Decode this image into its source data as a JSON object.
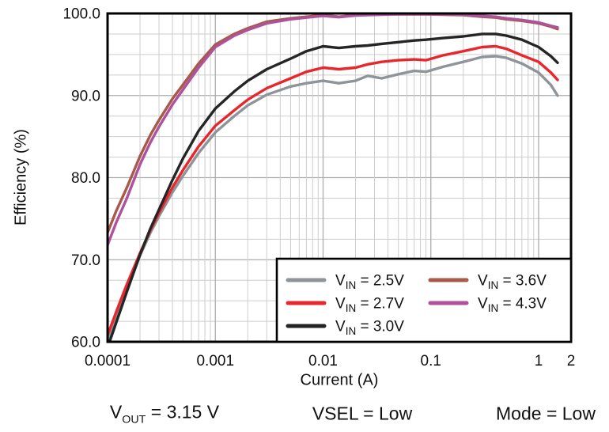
{
  "chart_data": {
    "type": "line",
    "x_scale": "log",
    "xlabel": "Current (A)",
    "ylabel": "Efficiency (%)",
    "xlim": [
      0.0001,
      2
    ],
    "ylim": [
      60,
      100
    ],
    "grid": true,
    "y_minor_step": 2.5,
    "legend_position": "inside-bottom-right",
    "x_tick_labels": [
      {
        "value": 0.0001,
        "label": "0.0001"
      },
      {
        "value": 0.001,
        "label": "0.001"
      },
      {
        "value": 0.01,
        "label": "0.01"
      },
      {
        "value": 0.1,
        "label": "0.1"
      },
      {
        "value": 1,
        "label": "1"
      },
      {
        "value": 2,
        "label": "2"
      }
    ],
    "y_tick_labels": [
      {
        "value": 100,
        "label": "100.0"
      },
      {
        "value": 90,
        "label": "90.0"
      },
      {
        "value": 80,
        "label": "80.0"
      },
      {
        "value": 70,
        "label": "70.0"
      },
      {
        "value": 60,
        "label": "60.0"
      }
    ],
    "x": [
      0.0001,
      0.00012,
      0.00015,
      0.0002,
      0.00025,
      0.0003,
      0.0004,
      0.0005,
      0.0007,
      0.001,
      0.0015,
      0.002,
      0.003,
      0.005,
      0.007,
      0.01,
      0.014,
      0.02,
      0.026,
      0.035,
      0.05,
      0.07,
      0.09,
      0.13,
      0.2,
      0.3,
      0.4,
      0.5,
      0.7,
      1.0,
      1.3,
      1.5
    ],
    "series": [
      {
        "name": "VIN = 2.5V",
        "label": {
          "base": "V",
          "sub": "IN",
          "rest": " = 2.5V"
        },
        "color": "#8F9498",
        "values": [
          60.0,
          62.9,
          66.3,
          70.5,
          73.3,
          75.3,
          78.2,
          80.2,
          83.0,
          85.5,
          87.5,
          88.8,
          90.1,
          91.1,
          91.5,
          91.8,
          91.5,
          91.8,
          92.4,
          92.1,
          92.6,
          93.0,
          92.9,
          93.5,
          94.1,
          94.7,
          94.8,
          94.6,
          93.9,
          92.8,
          91.3,
          90.0
        ]
      },
      {
        "name": "VIN = 2.7V",
        "label": {
          "base": "V",
          "sub": "IN",
          "rest": " = 2.7V"
        },
        "color": "#E8272D",
        "values": [
          60.8,
          63.6,
          66.9,
          70.8,
          73.6,
          75.7,
          78.8,
          80.9,
          83.8,
          86.3,
          88.2,
          89.5,
          90.9,
          92.1,
          92.9,
          93.4,
          93.2,
          93.4,
          93.8,
          94.1,
          94.3,
          94.4,
          94.3,
          94.9,
          95.4,
          95.9,
          96.0,
          95.7,
          94.9,
          94.1,
          92.8,
          91.9
        ]
      },
      {
        "name": "VIN = 3.0V",
        "label": {
          "base": "V",
          "sub": "IN",
          "rest": " = 3.0V"
        },
        "color": "#252525",
        "values": [
          59.3,
          62.3,
          66.0,
          70.6,
          73.8,
          76.1,
          79.7,
          82.3,
          85.7,
          88.4,
          90.5,
          91.8,
          93.2,
          94.5,
          95.4,
          96.0,
          95.8,
          96.0,
          96.1,
          96.3,
          96.5,
          96.7,
          96.8,
          97.0,
          97.2,
          97.5,
          97.5,
          97.3,
          96.8,
          95.9,
          94.8,
          94.0
        ]
      },
      {
        "name": "VIN = 3.6V",
        "label": {
          "base": "V",
          "sub": "IN",
          "rest": " = 3.6V"
        },
        "color": "#A85A48",
        "values": [
          73.3,
          75.9,
          78.7,
          82.6,
          85.2,
          87.0,
          89.6,
          91.3,
          93.9,
          96.2,
          97.5,
          98.2,
          99.0,
          99.4,
          99.6,
          99.8,
          99.6,
          99.8,
          99.85,
          99.9,
          99.9,
          99.9,
          99.9,
          99.85,
          99.8,
          99.6,
          99.5,
          99.3,
          99.1,
          98.8,
          98.4,
          98.1
        ]
      },
      {
        "name": "VIN = 4.3V",
        "label": {
          "base": "V",
          "sub": "IN",
          "rest": " = 4.3V"
        },
        "color": "#AE529E",
        "values": [
          71.8,
          74.5,
          77.4,
          81.6,
          84.3,
          86.2,
          88.9,
          90.7,
          93.4,
          95.9,
          97.3,
          98.0,
          98.8,
          99.3,
          99.5,
          99.7,
          99.55,
          99.75,
          99.8,
          99.85,
          99.9,
          99.9,
          99.9,
          99.9,
          99.85,
          99.7,
          99.6,
          99.4,
          99.2,
          98.9,
          98.5,
          98.3
        ]
      }
    ]
  },
  "annotations": [
    {
      "base": "V",
      "sub": "OUT",
      "rest": " = 3.15 V"
    },
    {
      "text": "VSEL = Low"
    },
    {
      "text": "Mode = Low"
    }
  ],
  "colors": {
    "grid_minor": "#CDCDCD",
    "grid_major": "#ACACAC",
    "frame": "#000000",
    "text": "#111111"
  }
}
